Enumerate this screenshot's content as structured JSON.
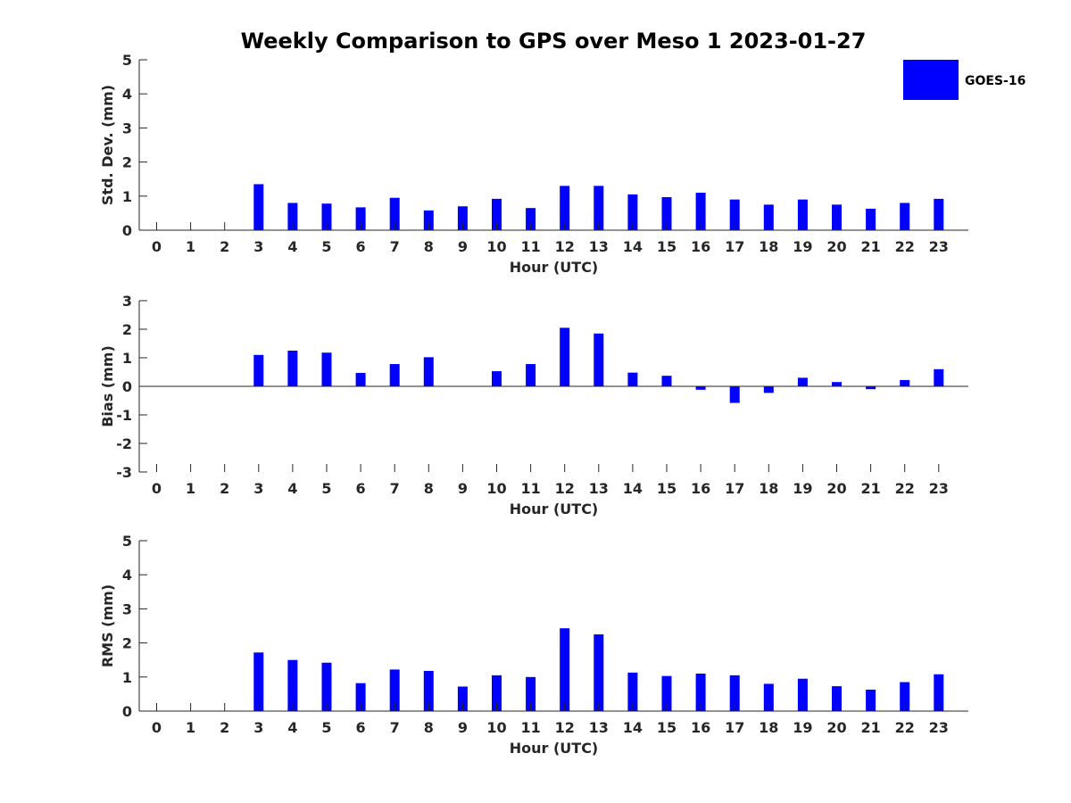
{
  "title": "Weekly Comparison to GPS over Meso 1 2023-01-27",
  "legend": {
    "label": "GOES-16",
    "color": "#0000ff",
    "placement": "top-right"
  },
  "chart_data": [
    {
      "type": "bar",
      "xlabel": "Hour (UTC)",
      "ylabel": "Std. Dev. (mm)",
      "ylim": [
        0,
        5
      ],
      "yticks": [
        0,
        1,
        2,
        3,
        4,
        5
      ],
      "categories": [
        0,
        1,
        2,
        3,
        4,
        5,
        6,
        7,
        8,
        9,
        10,
        11,
        12,
        13,
        14,
        15,
        16,
        17,
        18,
        19,
        20,
        21,
        22,
        23
      ],
      "series": [
        {
          "name": "GOES-16",
          "color": "#0000ff",
          "values": [
            null,
            null,
            null,
            1.35,
            0.8,
            0.78,
            0.67,
            0.95,
            0.58,
            0.7,
            0.92,
            0.65,
            1.3,
            1.3,
            1.05,
            0.97,
            1.1,
            0.9,
            0.75,
            0.9,
            0.75,
            0.63,
            0.8,
            0.92
          ]
        }
      ]
    },
    {
      "type": "bar",
      "xlabel": "Hour (UTC)",
      "ylabel": "Bias (mm)",
      "ylim": [
        -3,
        3
      ],
      "yticks": [
        -3,
        -2,
        -1,
        0,
        1,
        2,
        3
      ],
      "categories": [
        0,
        1,
        2,
        3,
        4,
        5,
        6,
        7,
        8,
        9,
        10,
        11,
        12,
        13,
        14,
        15,
        16,
        17,
        18,
        19,
        20,
        21,
        22,
        23
      ],
      "series": [
        {
          "name": "GOES-16",
          "color": "#0000ff",
          "values": [
            null,
            null,
            null,
            1.1,
            1.25,
            1.18,
            0.47,
            0.78,
            1.02,
            null,
            0.53,
            0.78,
            2.05,
            1.85,
            0.48,
            0.37,
            -0.12,
            -0.58,
            -0.23,
            0.3,
            0.15,
            -0.1,
            0.22,
            0.6
          ]
        }
      ]
    },
    {
      "type": "bar",
      "xlabel": "Hour (UTC)",
      "ylabel": "RMS (mm)",
      "ylim": [
        0,
        5
      ],
      "yticks": [
        0,
        1,
        2,
        3,
        4,
        5
      ],
      "categories": [
        0,
        1,
        2,
        3,
        4,
        5,
        6,
        7,
        8,
        9,
        10,
        11,
        12,
        13,
        14,
        15,
        16,
        17,
        18,
        19,
        20,
        21,
        22,
        23
      ],
      "series": [
        {
          "name": "GOES-16",
          "color": "#0000ff",
          "values": [
            null,
            null,
            null,
            1.72,
            1.5,
            1.42,
            0.82,
            1.22,
            1.18,
            0.72,
            1.05,
            1.0,
            2.43,
            2.25,
            1.13,
            1.03,
            1.1,
            1.05,
            0.8,
            0.95,
            0.73,
            0.63,
            0.85,
            1.08
          ]
        }
      ]
    }
  ]
}
